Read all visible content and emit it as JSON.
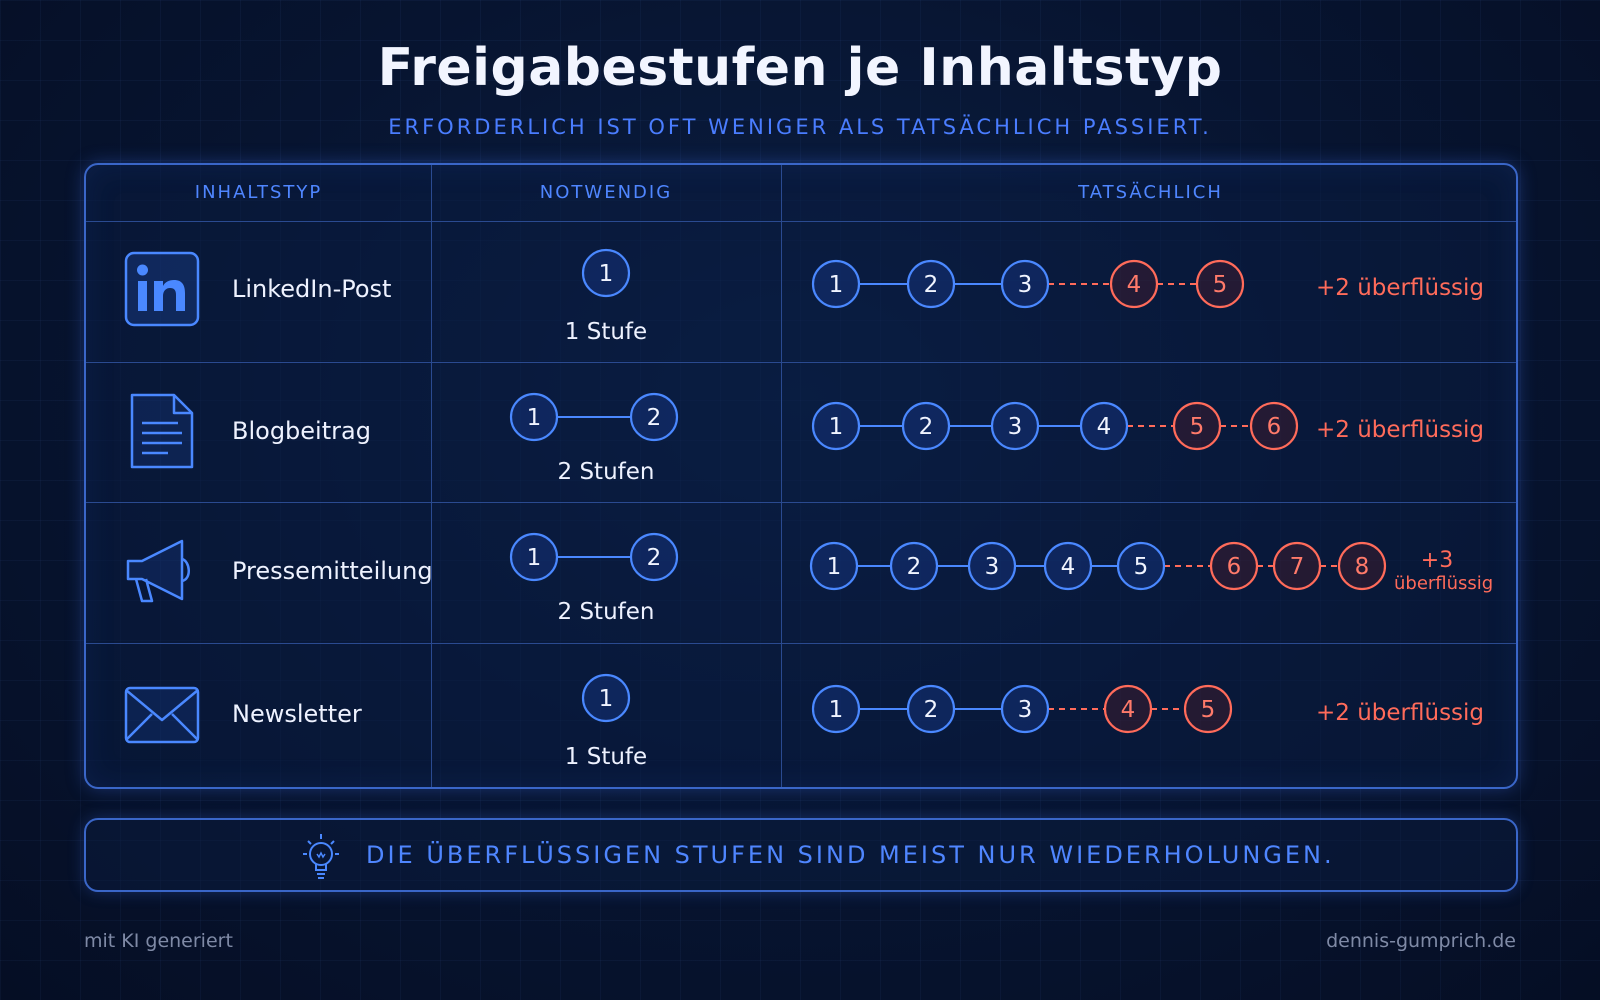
{
  "title": "Freigabestufen je Inhaltstyp",
  "subtitle": "ERFORDERLICH IST OFT WENIGER ALS TATSÄCHLICH PASSIERT.",
  "headers": {
    "type": "INHALTSTYP",
    "required": "NOTWENDIG",
    "actual": "TATSÄCHLICH"
  },
  "rows": [
    {
      "icon": "linkedin-icon",
      "label": "LinkedIn-Post",
      "required_steps": 1,
      "required_label": "1 Stufe",
      "actual_steps": 5,
      "extra_label": "+2 überflüssig"
    },
    {
      "icon": "document-icon",
      "label": "Blogbeitrag",
      "required_steps": 2,
      "required_label": "2 Stufen",
      "actual_steps": 6,
      "extra_label": "+2 überflüssig"
    },
    {
      "icon": "megaphone-icon",
      "label": "Pressemitteilung",
      "required_steps": 2,
      "required_label": "2 Stufen",
      "actual_steps": 8,
      "extra_label_top": "+3",
      "extra_label_bottom": "überflüssig"
    },
    {
      "icon": "envelope-icon",
      "label": "Newsletter",
      "required_steps": 1,
      "required_label": "1 Stufe",
      "actual_steps": 5,
      "extra_label": "+2 überflüssig"
    }
  ],
  "footer": {
    "icon": "lightbulb-icon",
    "text": "DIE ÜBERFLÜSSIGEN STUFEN SIND MEIST NUR WIEDERHOLUNGEN."
  },
  "credit_left": "mit KI generiert",
  "credit_right": "dennis-gumprich.de",
  "colors": {
    "accent": "#4f86ff",
    "node_stroke": "#4a88ff",
    "excess": "#ff6b5a",
    "background": "#071430"
  }
}
